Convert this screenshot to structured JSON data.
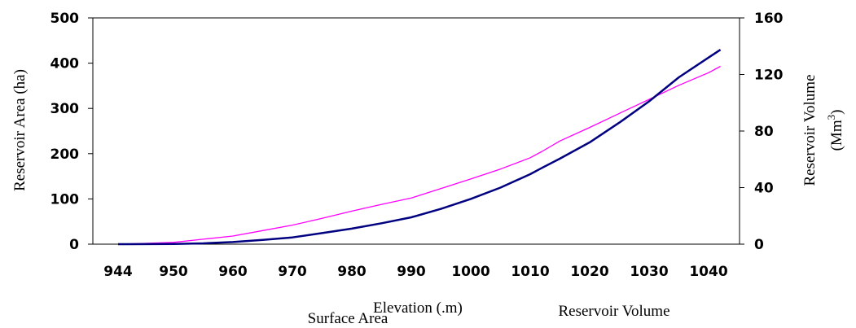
{
  "chart_data": {
    "type": "line",
    "x_tick_labels": [
      "944",
      "950",
      "960",
      "970",
      "980",
      "990",
      "1000",
      "1010",
      "1020",
      "1030",
      "1040"
    ],
    "y_left_ticks": [
      "0",
      "100",
      "200",
      "300",
      "400",
      "500"
    ],
    "y_right_ticks": [
      "0",
      "40",
      "80",
      "120",
      "160"
    ],
    "xlabel": "Elevation (.m)",
    "ylabel_left": "Reservoir Area (ha)",
    "ylabel_right_line1": "Reservoir Volume",
    "ylabel_right_line2": "(Mm",
    "ylabel_right_sup": "3",
    "ylabel_right_close": ")",
    "ylim_left": [
      0,
      500
    ],
    "ylim_right": [
      0,
      160
    ],
    "grid": false,
    "legend_placement": "bottom",
    "series": [
      {
        "name": "Surface Area",
        "axis": "left",
        "color": "#ff00ff",
        "points": [
          [
            944,
            0
          ],
          [
            945,
            0.5
          ],
          [
            946,
            1
          ],
          [
            950,
            4
          ],
          [
            955,
            11
          ],
          [
            960,
            18
          ],
          [
            965,
            30
          ],
          [
            970,
            42
          ],
          [
            975,
            57
          ],
          [
            980,
            73
          ],
          [
            985,
            88
          ],
          [
            990,
            102
          ],
          [
            995,
            123
          ],
          [
            1000,
            144
          ],
          [
            1005,
            166
          ],
          [
            1010,
            191
          ],
          [
            1012,
            205
          ],
          [
            1015,
            228
          ],
          [
            1020,
            258
          ],
          [
            1025,
            289
          ],
          [
            1030,
            320
          ],
          [
            1035,
            351
          ],
          [
            1040,
            379
          ],
          [
            1042,
            393
          ]
        ]
      },
      {
        "name": "Reservoir Volume",
        "axis": "right",
        "color": "#000080",
        "points": [
          [
            944,
            0
          ],
          [
            945,
            0
          ],
          [
            950,
            0.2
          ],
          [
            955,
            0.6
          ],
          [
            960,
            1.5
          ],
          [
            965,
            3
          ],
          [
            970,
            4.8
          ],
          [
            975,
            7.8
          ],
          [
            980,
            11
          ],
          [
            985,
            14.8
          ],
          [
            990,
            19
          ],
          [
            995,
            25
          ],
          [
            1000,
            32
          ],
          [
            1005,
            40
          ],
          [
            1010,
            49.5
          ],
          [
            1012,
            54
          ],
          [
            1015,
            60.5
          ],
          [
            1020,
            72
          ],
          [
            1025,
            86
          ],
          [
            1030,
            101
          ],
          [
            1035,
            118
          ],
          [
            1040,
            132
          ],
          [
            1042,
            137.5
          ]
        ]
      }
    ]
  }
}
